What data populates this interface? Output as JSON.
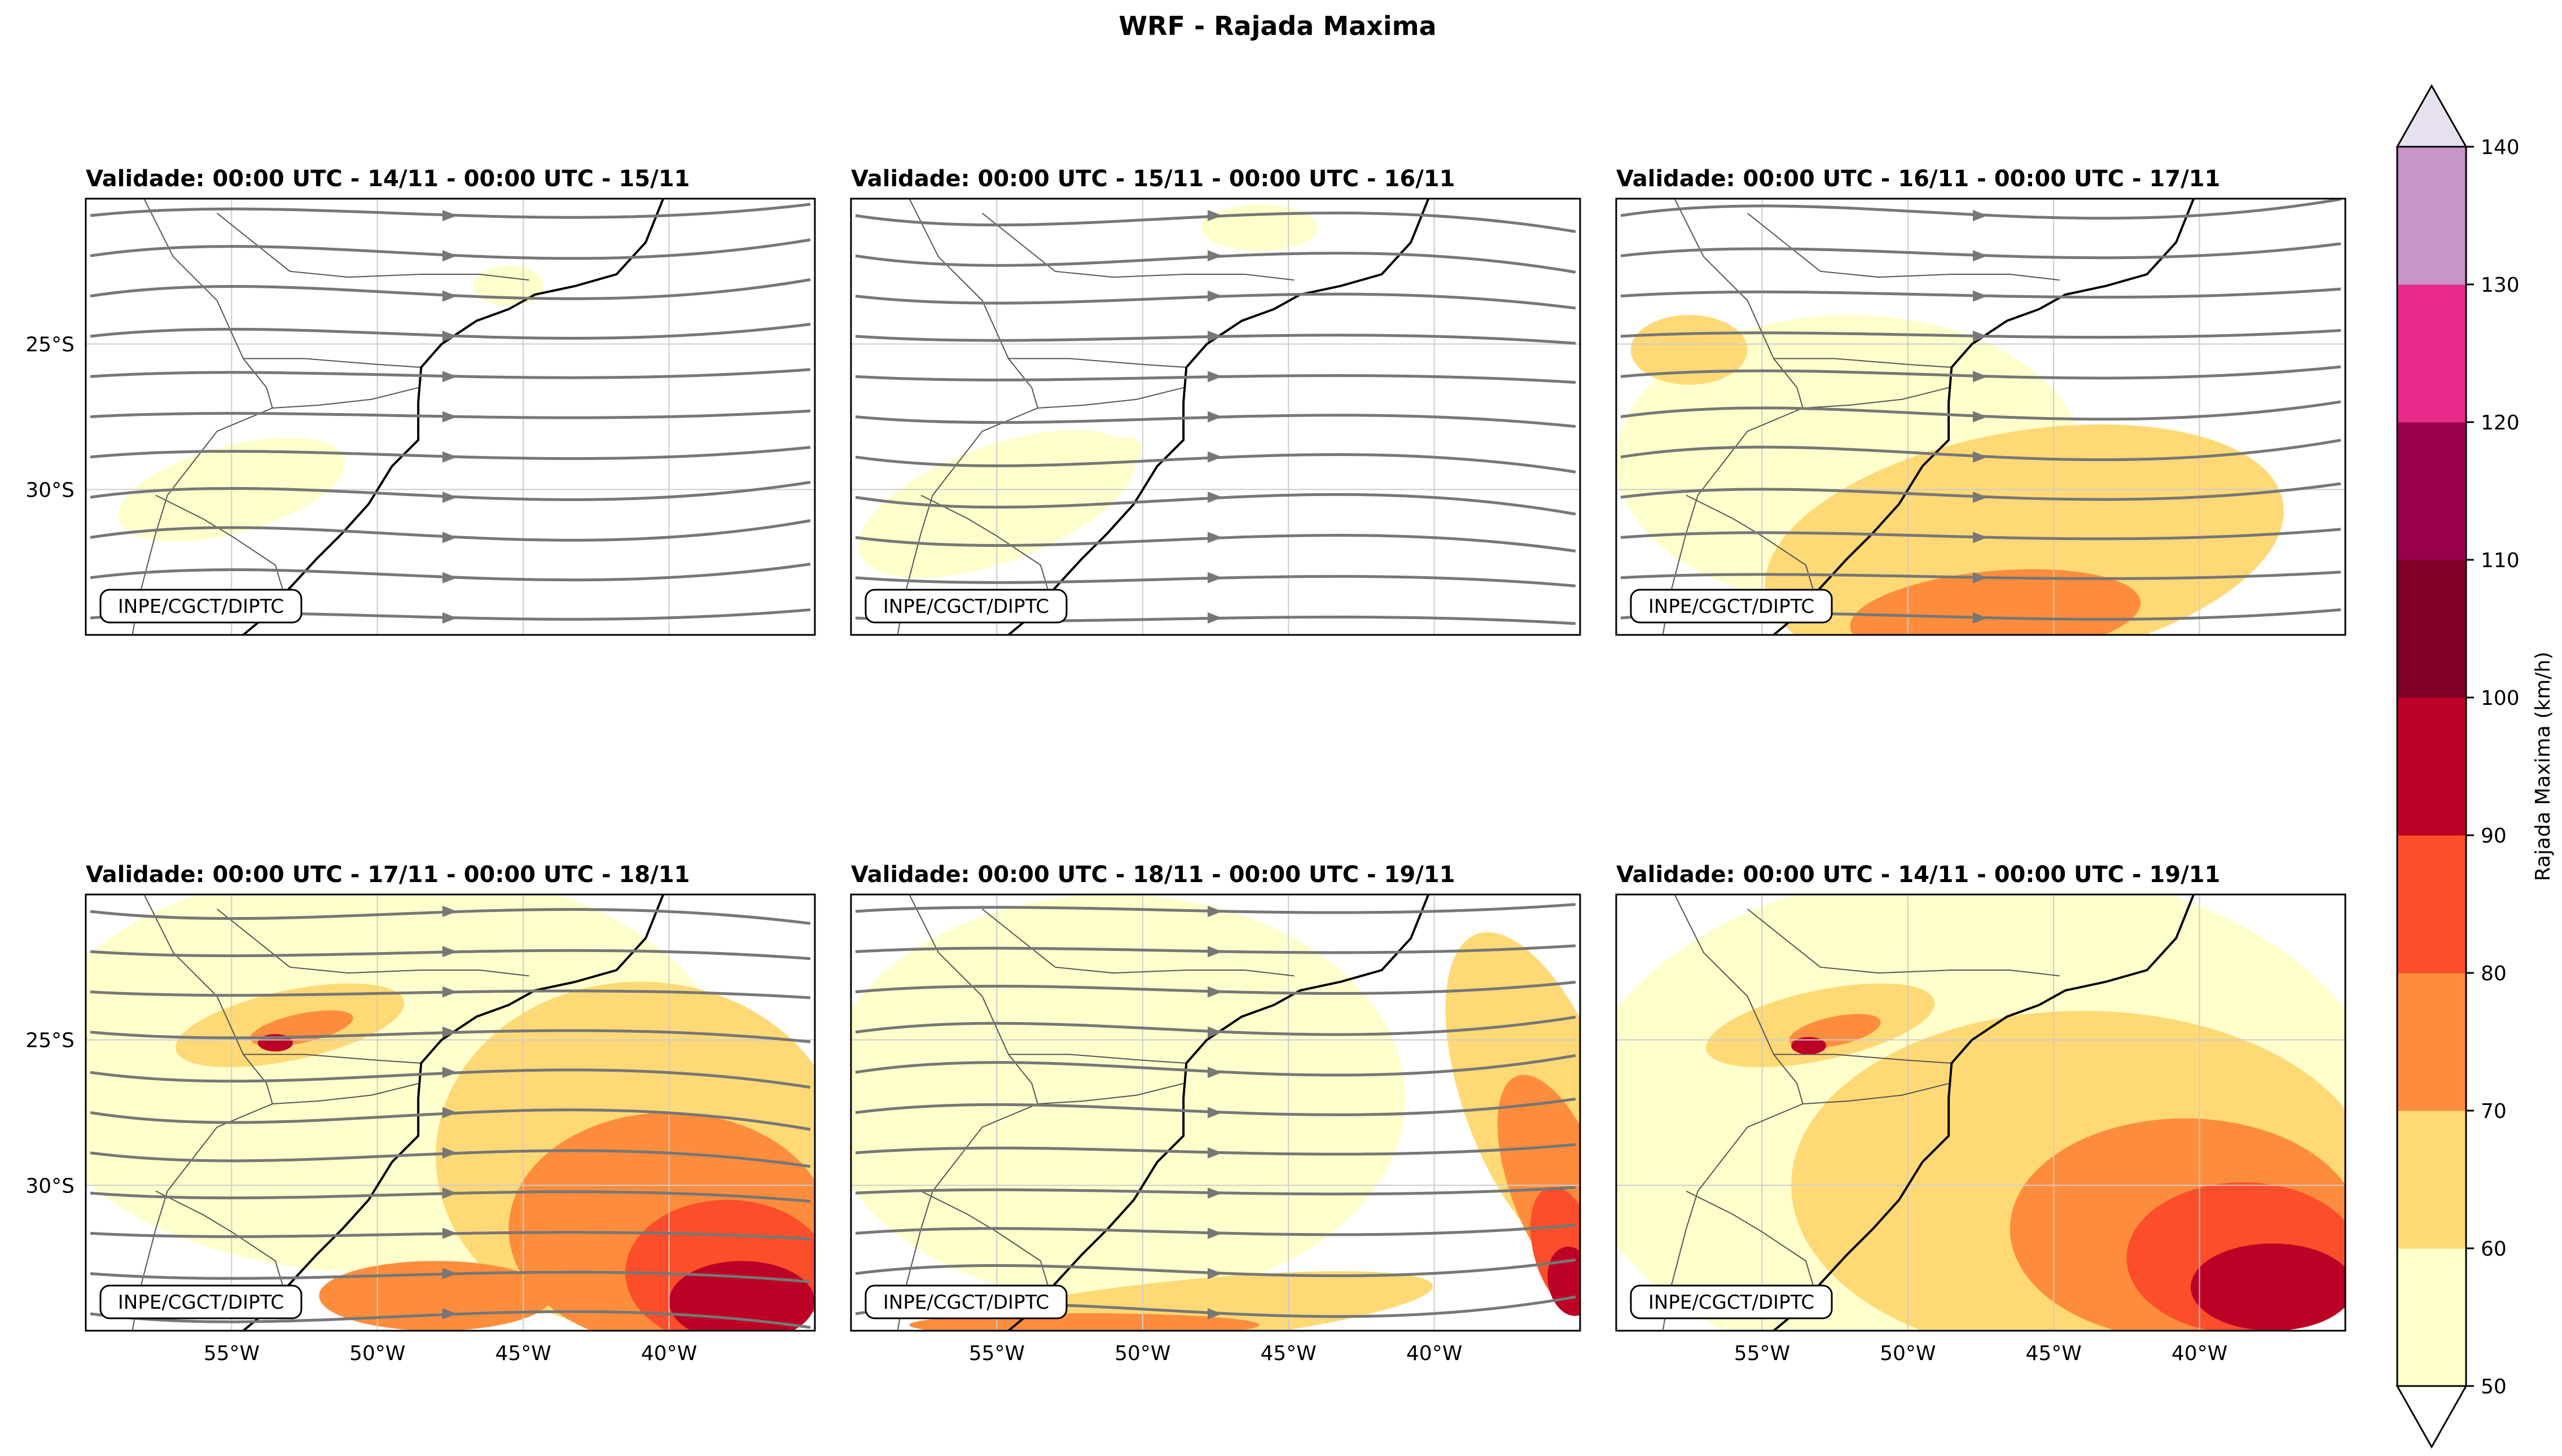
{
  "title": "WRF - Rajada Maxima",
  "chart_data": {
    "type": "contourf_map_grid",
    "panels": [
      {
        "title": "Validade: 00:00 UTC - 14/11 - 00:00 UTC - 15/11",
        "streamlines": true,
        "intensity": 0.1
      },
      {
        "title": "Validade: 00:00 UTC - 15/11 - 00:00 UTC - 16/11",
        "streamlines": true,
        "intensity": 0.2
      },
      {
        "title": "Validade: 00:00 UTC - 16/11 - 00:00 UTC - 17/11",
        "streamlines": true,
        "intensity": 0.45
      },
      {
        "title": "Validade: 00:00 UTC - 17/11 - 00:00 UTC - 18/11",
        "streamlines": true,
        "intensity": 0.85
      },
      {
        "title": "Validade: 00:00 UTC - 18/11 - 00:00 UTC - 19/11",
        "streamlines": true,
        "intensity": 0.7
      },
      {
        "title": "Validade: 00:00 UTC - 14/11 - 00:00 UTC - 19/11",
        "streamlines": false,
        "intensity": 0.9
      }
    ],
    "credit_label": "INPE/CGCT/DIPTC",
    "x_ticks": [
      "55°W",
      "50°W",
      "45°W",
      "40°W"
    ],
    "x_tick_values": [
      -55,
      -50,
      -45,
      -40
    ],
    "y_ticks": [
      "25°S",
      "30°S"
    ],
    "y_tick_values": [
      -25,
      -30
    ],
    "lon_range": [
      -60,
      -35
    ],
    "lat_range": [
      -35,
      -20
    ],
    "colorbar": {
      "label": "Rajada Maxima (km/h)",
      "levels": [
        50,
        60,
        70,
        80,
        90,
        100,
        110,
        120,
        130,
        140
      ],
      "tick_labels": [
        "50",
        "60",
        "70",
        "80",
        "90",
        "100",
        "110",
        "120",
        "130",
        "140"
      ],
      "colors": [
        "#ffffcc",
        "#fed976",
        "#fd8d3c",
        "#fc4e2a",
        "#bd0026",
        "#800026",
        "#99004d",
        "#e7298a",
        "#c994c7"
      ],
      "over_color": "#e7e1ef",
      "under_color": "#ffffff",
      "extend": "both"
    }
  }
}
